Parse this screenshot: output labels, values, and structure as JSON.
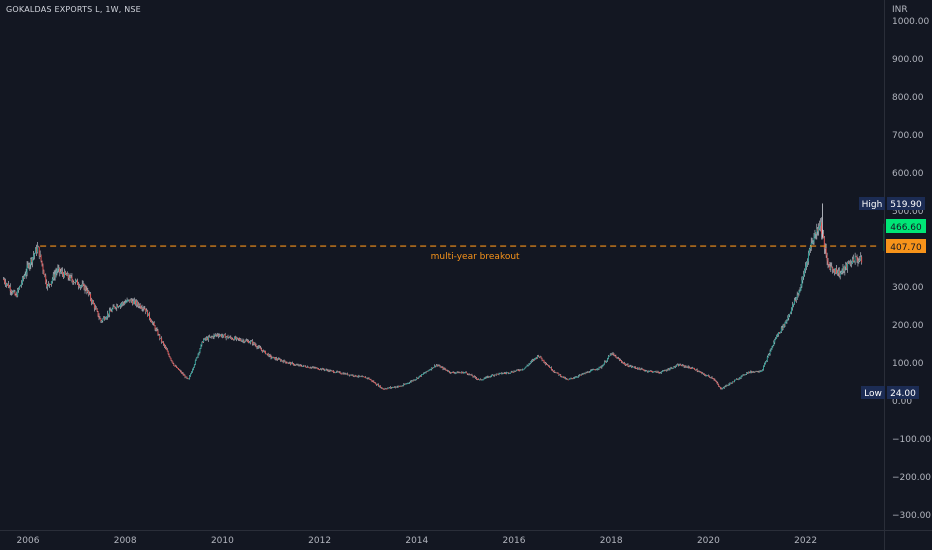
{
  "chart_title": "GOKALDAS EXPORTS L, 1W, NSE",
  "currency": "INR",
  "chart_data": {
    "type": "candlestick",
    "title": "GOKALDAS EXPORTS L, 1W, NSE",
    "ylabel": "INR",
    "ylim": [
      -330,
      1030
    ],
    "y_ticks": [
      1000,
      900,
      800,
      700,
      600,
      500,
      400,
      300,
      200,
      100,
      0,
      -100,
      -200,
      -300
    ],
    "y_tick_labels": [
      "1000.00",
      "900.00",
      "800.00",
      "700.00",
      "600.00",
      "500.00",
      "400.00",
      "300.00",
      "200.00",
      "100.00",
      "0.00",
      "−100.00",
      "−200.00",
      "−300.00"
    ],
    "x_range": [
      2005.5,
      2023.7
    ],
    "x_ticks": [
      2006,
      2008,
      2010,
      2012,
      2014,
      2016,
      2018,
      2020,
      2022
    ],
    "x_tick_labels": [
      "2006",
      "2008",
      "2010",
      "2012",
      "2014",
      "2016",
      "2018",
      "2020",
      "2022"
    ],
    "price_path": [
      [
        2005.5,
        320
      ],
      [
        2005.75,
        275
      ],
      [
        2006.0,
        355
      ],
      [
        2006.2,
        405
      ],
      [
        2006.4,
        300
      ],
      [
        2006.6,
        345
      ],
      [
        2006.9,
        320
      ],
      [
        2007.2,
        295
      ],
      [
        2007.5,
        210
      ],
      [
        2007.8,
        250
      ],
      [
        2008.1,
        265
      ],
      [
        2008.4,
        245
      ],
      [
        2008.7,
        170
      ],
      [
        2009.0,
        95
      ],
      [
        2009.3,
        55
      ],
      [
        2009.6,
        160
      ],
      [
        2009.9,
        175
      ],
      [
        2010.2,
        165
      ],
      [
        2010.6,
        155
      ],
      [
        2011.0,
        115
      ],
      [
        2011.5,
        95
      ],
      [
        2012.0,
        85
      ],
      [
        2012.5,
        72
      ],
      [
        2013.0,
        60
      ],
      [
        2013.3,
        32
      ],
      [
        2013.7,
        40
      ],
      [
        2014.0,
        60
      ],
      [
        2014.4,
        95
      ],
      [
        2014.7,
        75
      ],
      [
        2015.0,
        75
      ],
      [
        2015.3,
        55
      ],
      [
        2015.6,
        70
      ],
      [
        2015.9,
        75
      ],
      [
        2016.2,
        85
      ],
      [
        2016.5,
        120
      ],
      [
        2016.8,
        80
      ],
      [
        2017.1,
        55
      ],
      [
        2017.4,
        70
      ],
      [
        2017.8,
        90
      ],
      [
        2018.0,
        125
      ],
      [
        2018.3,
        95
      ],
      [
        2018.7,
        80
      ],
      [
        2019.0,
        75
      ],
      [
        2019.4,
        95
      ],
      [
        2019.7,
        85
      ],
      [
        2019.9,
        70
      ],
      [
        2020.1,
        60
      ],
      [
        2020.25,
        32
      ],
      [
        2020.5,
        50
      ],
      [
        2020.8,
        75
      ],
      [
        2021.1,
        80
      ],
      [
        2021.4,
        170
      ],
      [
        2021.6,
        210
      ],
      [
        2021.9,
        300
      ],
      [
        2022.1,
        410
      ],
      [
        2022.3,
        470
      ],
      [
        2022.45,
        360
      ],
      [
        2022.7,
        335
      ],
      [
        2023.0,
        375
      ],
      [
        2023.3,
        365
      ],
      [
        2023.5,
        395
      ],
      [
        2023.6,
        466.6
      ]
    ],
    "annotations": {
      "breakout_level": 407.7,
      "breakout_label": "multi-year breakout",
      "high_label": "High",
      "high_value": "519.90",
      "low_label": "Low",
      "low_value": "24.00",
      "last_price": "466.60",
      "level_price": "407.70"
    },
    "grid": false
  },
  "colors": {
    "background": "#131722",
    "up": "#26a69a",
    "down": "#ef5350",
    "wick": "#d1d4dc",
    "breakout_line": "#f7931a",
    "last_price_bg": "#00e676",
    "level_bg": "#f7931a",
    "badge_bg": "#1c2c54"
  }
}
